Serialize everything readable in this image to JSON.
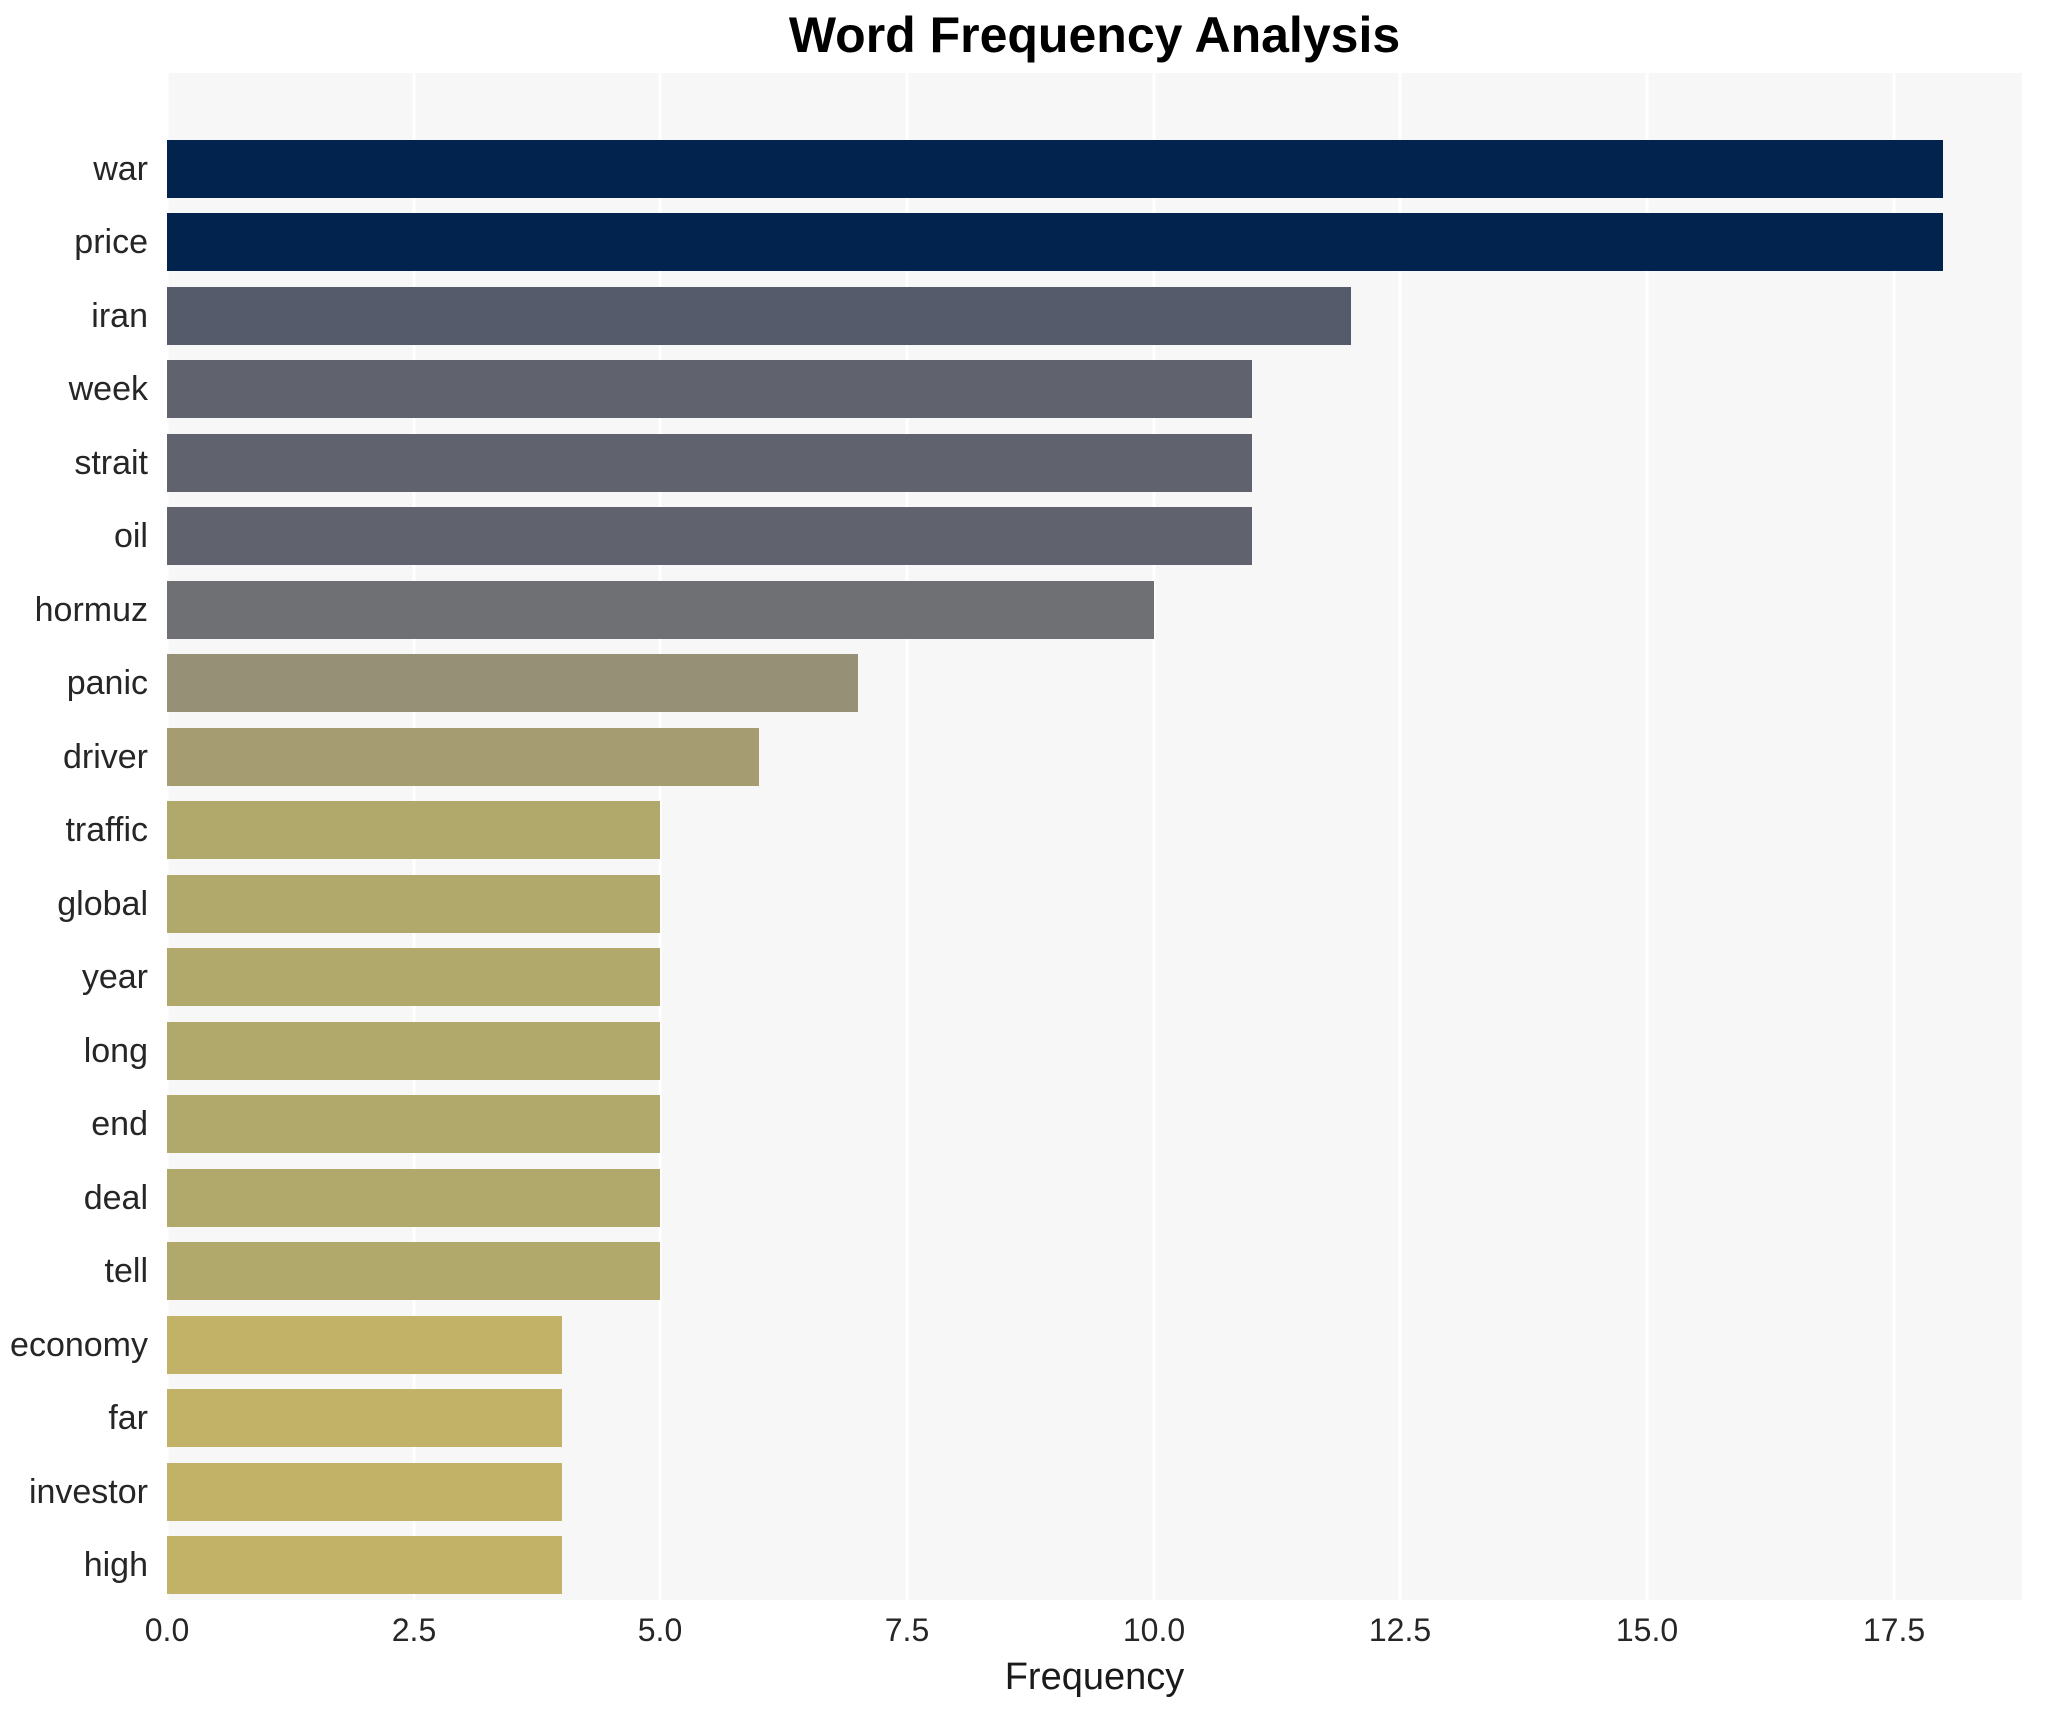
{
  "title": "Word Frequency Analysis",
  "chart_data": {
    "type": "bar",
    "orientation": "horizontal",
    "title": "Word Frequency Analysis",
    "xlabel": "Frequency",
    "ylabel": "",
    "categories": [
      "war",
      "price",
      "iran",
      "week",
      "strait",
      "oil",
      "hormuz",
      "panic",
      "driver",
      "traffic",
      "global",
      "year",
      "long",
      "end",
      "deal",
      "tell",
      "economy",
      "far",
      "investor",
      "high"
    ],
    "values": [
      18,
      18,
      12,
      11,
      11,
      11,
      10,
      7,
      6,
      5,
      5,
      5,
      5,
      5,
      5,
      5,
      4,
      4,
      4,
      4
    ],
    "bar_colors": [
      "#01234e",
      "#01234e",
      "#565b6c",
      "#60636e",
      "#60636e",
      "#60636e",
      "#6f7073",
      "#969077",
      "#a59d71",
      "#b1a86b",
      "#b1a86b",
      "#b1a86b",
      "#b1a86b",
      "#b1a86b",
      "#b1a86b",
      "#b1a86b",
      "#c2b268",
      "#c2b268",
      "#c2b268",
      "#c2b268"
    ],
    "xticks": [
      "0.0",
      "2.5",
      "5.0",
      "7.5",
      "10.0",
      "12.5",
      "15.0",
      "17.5"
    ],
    "xtick_values": [
      0,
      2.5,
      5,
      7.5,
      10,
      12.5,
      15,
      17.5
    ],
    "xlim": [
      0,
      18.8
    ],
    "grid": true,
    "legend": false,
    "plot_background": "#f7f7f7",
    "grid_color": "#ffffff"
  }
}
